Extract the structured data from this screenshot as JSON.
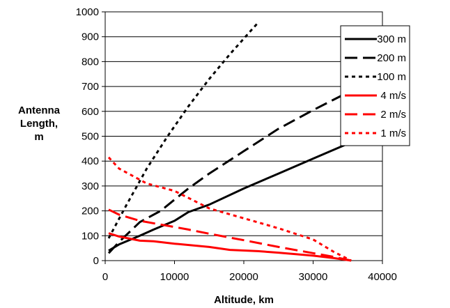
{
  "chart_data": {
    "type": "line",
    "xlabel": "Altitude, km",
    "ylabel_lines": [
      "Antenna",
      "Length,",
      "m"
    ],
    "xlim": [
      0,
      40000
    ],
    "ylim": [
      0,
      1000
    ],
    "x_ticks": [
      0,
      10000,
      20000,
      30000,
      40000
    ],
    "y_ticks": [
      0,
      100,
      200,
      300,
      400,
      500,
      600,
      700,
      800,
      900,
      1000
    ],
    "grid": "horizontal",
    "legend_position": "top-right",
    "series": [
      {
        "name": "300 m",
        "color": "#000000",
        "dash": "solid",
        "x": [
          500,
          2000,
          5000,
          7000,
          10000,
          12000,
          15000,
          20000,
          25000,
          30000,
          35000,
          36000
        ],
        "y": [
          40,
          65,
          100,
          125,
          160,
          195,
          225,
          290,
          350,
          410,
          470,
          480
        ]
      },
      {
        "name": "200 m",
        "color": "#000000",
        "dash": "dashed",
        "x": [
          500,
          2000,
          5000,
          8000,
          12000,
          15000,
          20000,
          25000,
          30000,
          36000
        ],
        "y": [
          30,
          75,
          155,
          200,
          290,
          350,
          440,
          530,
          605,
          690
        ]
      },
      {
        "name": "100 m",
        "color": "#000000",
        "dash": "dotted",
        "x": [
          500,
          3000,
          6000,
          9000,
          12000,
          15000,
          18000,
          22000
        ],
        "y": [
          90,
          220,
          370,
          500,
          620,
          730,
          830,
          955
        ]
      },
      {
        "name": "4 m/s",
        "color": "#ff0000",
        "dash": "solid",
        "x": [
          500,
          2000,
          5000,
          7000,
          10000,
          15000,
          18000,
          22000,
          25000,
          30000,
          33000,
          35500
        ],
        "y": [
          110,
          97,
          80,
          78,
          68,
          55,
          43,
          38,
          32,
          20,
          10,
          0
        ]
      },
      {
        "name": "2 m/s",
        "color": "#ff0000",
        "dash": "dashed",
        "x": [
          500,
          2000,
          5000,
          8000,
          12000,
          15000,
          20000,
          25000,
          30000,
          33000,
          35500
        ],
        "y": [
          205,
          185,
          160,
          145,
          125,
          108,
          82,
          55,
          30,
          15,
          0
        ]
      },
      {
        "name": "1 m/s",
        "color": "#ff0000",
        "dash": "dotted",
        "x": [
          500,
          2000,
          6000,
          10000,
          15000,
          20000,
          25000,
          30000,
          33000,
          35500
        ],
        "y": [
          415,
          370,
          310,
          280,
          210,
          170,
          130,
          85,
          35,
          0
        ]
      }
    ]
  }
}
